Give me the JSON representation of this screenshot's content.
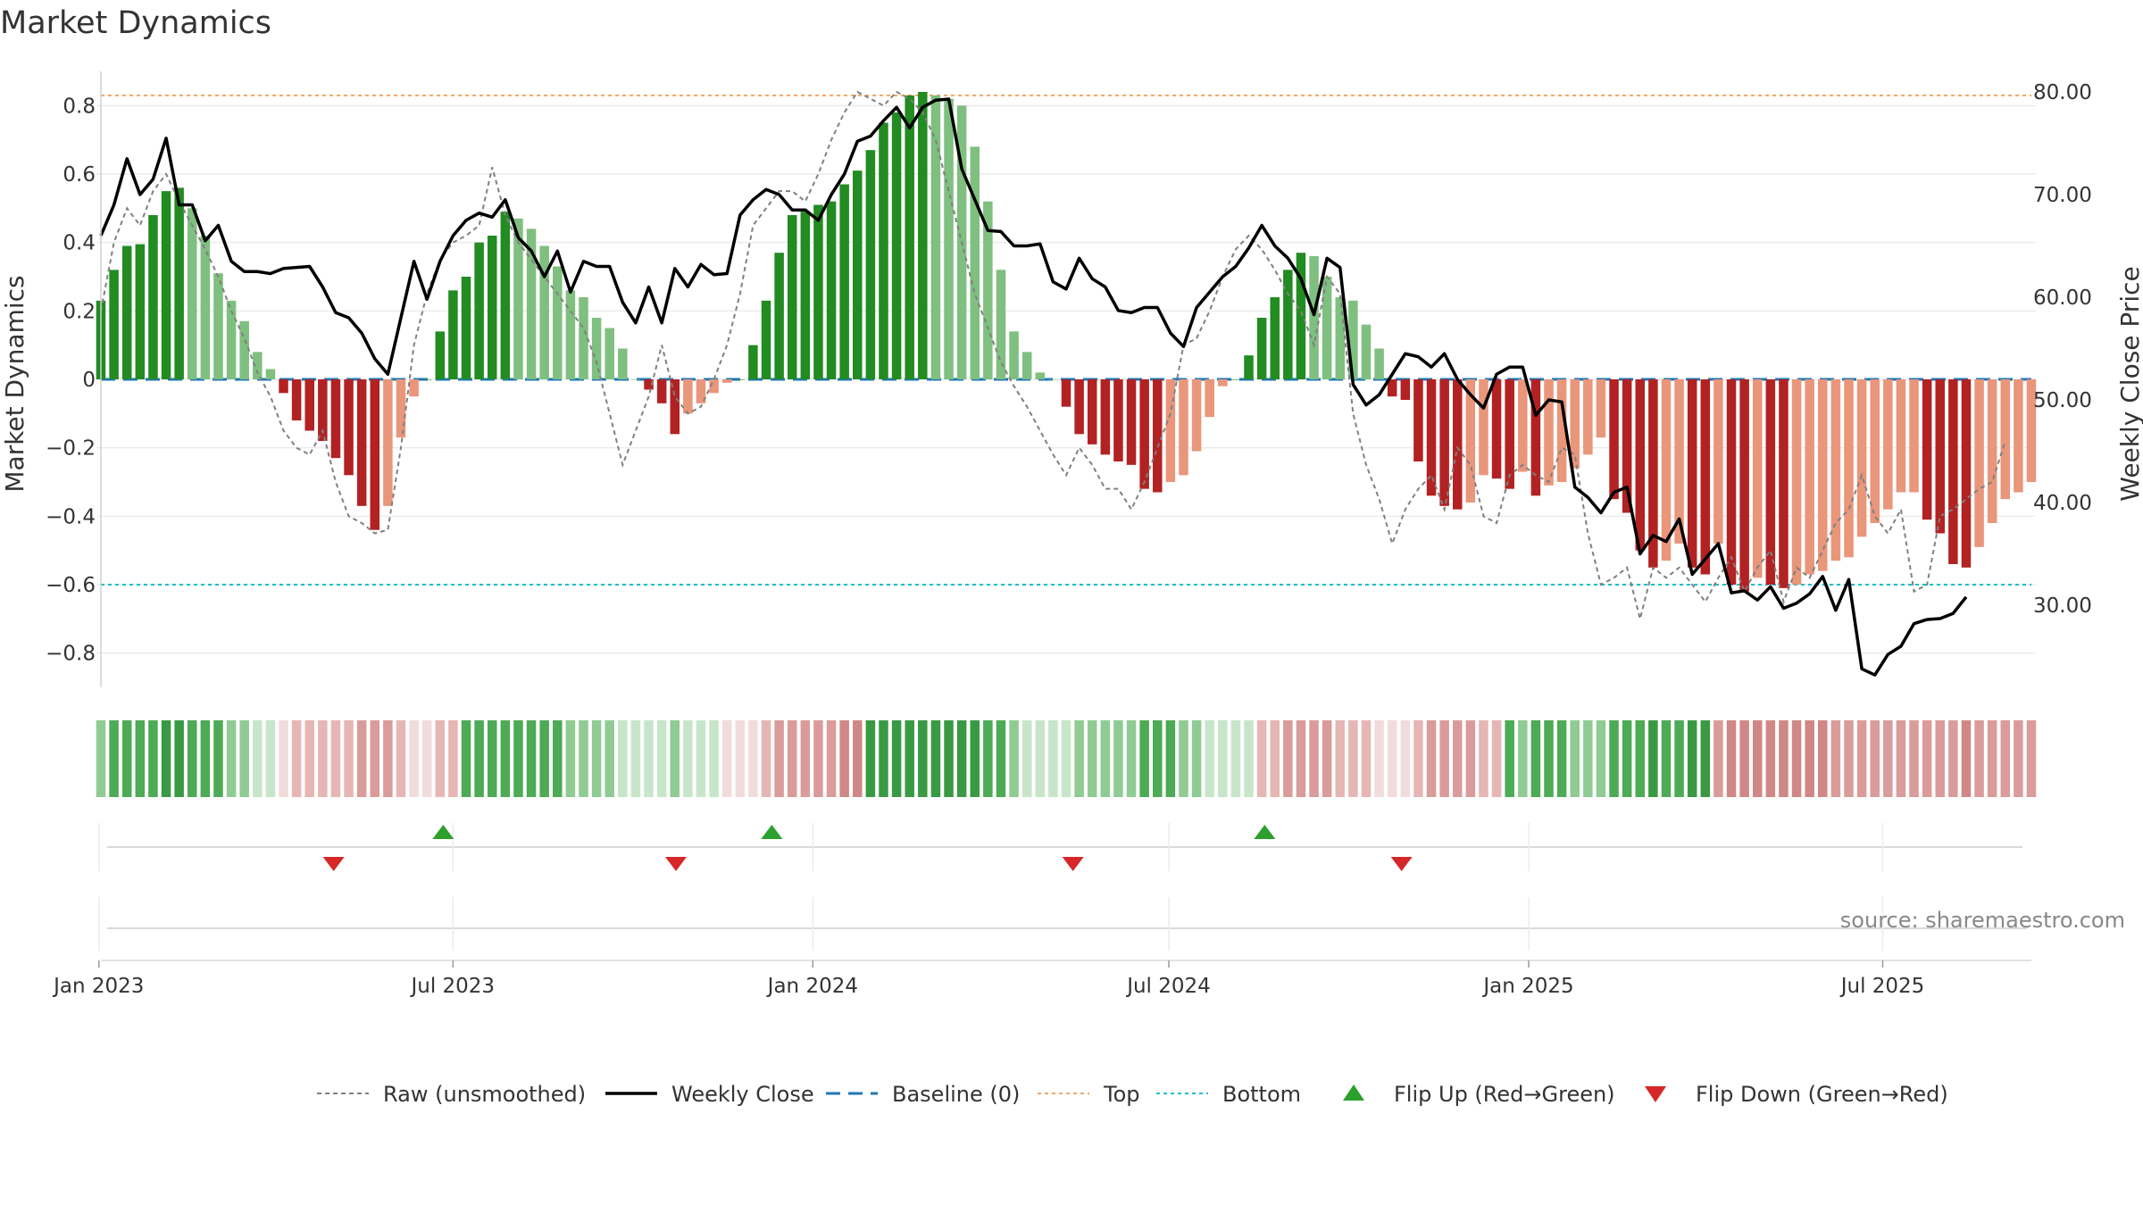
{
  "title": "Market Dynamics",
  "source_text": "source: sharemaestro.com",
  "colors": {
    "strong_green": "#228b22",
    "light_green": "#7fbf7f",
    "strong_red": "#b22222",
    "light_red": "#e9967a",
    "raw": "#808080",
    "close": "#000000",
    "baseline": "#1f77b4",
    "top": "#f4a460",
    "bottom": "#17becf",
    "flip_up": "#2ca02c",
    "flip_down": "#d62728"
  },
  "chart_data": {
    "type": "bar",
    "title": "Market Dynamics",
    "ylabel_left": "Market Dynamics",
    "ylabel_right": "Weekly Close Price",
    "ylim_left": [
      -0.9,
      0.9
    ],
    "ylim_right": [
      22,
      82
    ],
    "yticks_left": [
      0.8,
      0.6,
      0.4,
      0.2,
      0,
      -0.2,
      -0.4,
      -0.6,
      -0.8
    ],
    "yticks_left_labels": [
      "0.8",
      "0.6",
      "0.4",
      "0.2",
      "0",
      "−0.2",
      "−0.4",
      "−0.6",
      "−0.8"
    ],
    "yticks_right": [
      80,
      70,
      60,
      50,
      40,
      30
    ],
    "yticks_right_labels": [
      "80.00",
      "70.00",
      "60.00",
      "50.00",
      "40.00",
      "30.00"
    ],
    "x_start": "2023-01-02",
    "x_end": "2025-09-15",
    "xticks": [
      "2023-01-01",
      "2023-07-01",
      "2024-01-01",
      "2024-07-01",
      "2025-01-01",
      "2025-07-01"
    ],
    "xtick_labels": [
      "Jan 2023",
      "Jul 2023",
      "Jan 2024",
      "Jul 2024",
      "Jan 2025",
      "Jul 2025"
    ],
    "top_level": 0.83,
    "bottom_level": -0.6,
    "baseline_level": 0,
    "grid": true,
    "legend_position": "bottom-center",
    "series": [
      {
        "name": "Raw (unsmoothed)",
        "type": "line",
        "values": [
          0.2,
          0.4,
          0.5,
          0.45,
          0.55,
          0.6,
          0.52,
          0.45,
          0.38,
          0.3,
          0.2,
          0.12,
          0.02,
          -0.05,
          -0.15,
          -0.2,
          -0.22,
          -0.15,
          -0.3,
          -0.4,
          -0.42,
          -0.45,
          -0.44,
          -0.2,
          0.1,
          0.25,
          0.35,
          0.4,
          0.42,
          0.45,
          0.62,
          0.48,
          0.4,
          0.35,
          0.3,
          0.25,
          0.2,
          0.15,
          0.05,
          -0.1,
          -0.25,
          -0.15,
          -0.05,
          0.1,
          -0.05,
          -0.1,
          -0.08,
          0.0,
          0.1,
          0.25,
          0.45,
          0.5,
          0.55,
          0.55,
          0.52,
          0.6,
          0.7,
          0.78,
          0.84,
          0.82,
          0.8,
          0.84,
          0.82,
          0.78,
          0.7,
          0.55,
          0.4,
          0.25,
          0.15,
          0.05,
          -0.02,
          -0.08,
          -0.15,
          -0.22,
          -0.28,
          -0.2,
          -0.25,
          -0.32,
          -0.32,
          -0.38,
          -0.3,
          -0.2,
          -0.1,
          0.1,
          0.12,
          0.2,
          0.3,
          0.38,
          0.42,
          0.38,
          0.32,
          0.25,
          0.2,
          0.1,
          0.3,
          0.25,
          -0.1,
          -0.25,
          -0.35,
          -0.48,
          -0.38,
          -0.32,
          -0.28,
          -0.38,
          -0.2,
          -0.25,
          -0.4,
          -0.42,
          -0.28,
          -0.25,
          -0.28,
          -0.3,
          -0.2,
          -0.22,
          -0.45,
          -0.6,
          -0.58,
          -0.55,
          -0.7,
          -0.55,
          -0.58,
          -0.55,
          -0.6,
          -0.65,
          -0.58,
          -0.52,
          -0.62,
          -0.55,
          -0.5,
          -0.65,
          -0.55,
          -0.58,
          -0.5,
          -0.42,
          -0.38,
          -0.28,
          -0.4,
          -0.45,
          -0.38,
          -0.62,
          -0.6,
          -0.4,
          -0.38,
          -0.35,
          -0.32,
          -0.3,
          -0.18
        ]
      },
      {
        "name": "Weekly Close",
        "type": "line",
        "axis": "right",
        "values": [
          66,
          69,
          73.5,
          70,
          71.5,
          75.5,
          69,
          69,
          65.5,
          67,
          63.5,
          62.5,
          62.5,
          62.3,
          62.8,
          62.9,
          63,
          61,
          58.5,
          58,
          56.5,
          54,
          52.5,
          58,
          63.5,
          59.8,
          63.5,
          66,
          67.5,
          68.2,
          67.8,
          69.5,
          65.8,
          64.5,
          62,
          64.5,
          60.5,
          63.5,
          63,
          63,
          59.5,
          57.5,
          61,
          57.5,
          62.8,
          61,
          63.2,
          62.2,
          62.3,
          68,
          69.5,
          70.5,
          70,
          68.5,
          68.5,
          67.5,
          70,
          72,
          75.2,
          75.7,
          77.2,
          78.5,
          76.5,
          78.5,
          79.2,
          79.3,
          72.5,
          69.5,
          66.5,
          66.4,
          65,
          65,
          65.2,
          61.5,
          60.8,
          63.8,
          61.8,
          61,
          58.7,
          58.5,
          59,
          59,
          56.5,
          55.2,
          59,
          60.5,
          62,
          63,
          64.8,
          67,
          65,
          63.8,
          61.8,
          58.3,
          63.8,
          62.9,
          51.5,
          49.5,
          50.5,
          52.5,
          54.5,
          54.2,
          53.2,
          54.5,
          52,
          50.5,
          49.2,
          52.5,
          53.2,
          53.2,
          48.5,
          50,
          49.8,
          41.5,
          40.5,
          39,
          41,
          41.5,
          35,
          36.8,
          36.2,
          38.4,
          33,
          34.5,
          36,
          31.2,
          31.4,
          30.5,
          31.8,
          29.7,
          30.2,
          31.1,
          32.8,
          29.5,
          32.5,
          23.8,
          23.2,
          25.2,
          26,
          28.2,
          28.6,
          28.7,
          29.2,
          30.8
        ]
      },
      {
        "name": "Market Dynamics",
        "type": "bar",
        "values": [
          0.23,
          0.32,
          0.39,
          0.395,
          0.48,
          0.55,
          0.56,
          0.5,
          0.42,
          0.31,
          0.23,
          0.17,
          0.08,
          0.03,
          -0.04,
          -0.12,
          -0.15,
          -0.18,
          -0.23,
          -0.28,
          -0.37,
          -0.44,
          -0.37,
          -0.17,
          -0.05,
          0.0,
          0.14,
          0.26,
          0.3,
          0.4,
          0.42,
          0.49,
          0.47,
          0.44,
          0.39,
          0.33,
          0.26,
          0.24,
          0.18,
          0.15,
          0.09,
          0.0,
          -0.03,
          -0.07,
          -0.16,
          -0.1,
          -0.07,
          -0.04,
          -0.01,
          0.0,
          0.1,
          0.23,
          0.37,
          0.48,
          0.49,
          0.51,
          0.52,
          0.57,
          0.61,
          0.67,
          0.75,
          0.78,
          0.83,
          0.84,
          0.83,
          0.82,
          0.8,
          0.68,
          0.52,
          0.32,
          0.14,
          0.08,
          0.02,
          0.0,
          -0.08,
          -0.16,
          -0.19,
          -0.22,
          -0.24,
          -0.25,
          -0.32,
          -0.33,
          -0.3,
          -0.28,
          -0.21,
          -0.11,
          -0.02,
          0.0,
          0.07,
          0.18,
          0.24,
          0.32,
          0.37,
          0.36,
          0.3,
          0.24,
          0.23,
          0.16,
          0.09,
          -0.05,
          -0.06,
          -0.24,
          -0.34,
          -0.37,
          -0.38,
          -0.36,
          -0.28,
          -0.29,
          -0.32,
          -0.27,
          -0.34,
          -0.31,
          -0.3,
          -0.26,
          -0.22,
          -0.17,
          -0.35,
          -0.39,
          -0.5,
          -0.55,
          -0.53,
          -0.48,
          -0.55,
          -0.57,
          -0.48,
          -0.6,
          -0.62,
          -0.58,
          -0.6,
          -0.61,
          -0.6,
          -0.57,
          -0.56,
          -0.53,
          -0.52,
          -0.46,
          -0.42,
          -0.38,
          -0.33,
          -0.33,
          -0.41,
          -0.45,
          -0.54,
          -0.55,
          -0.49,
          -0.42,
          -0.35,
          -0.33,
          -0.3
        ]
      }
    ],
    "regime_segments": [
      {
        "regime": "green",
        "weeks": 14
      },
      {
        "regime": "red",
        "weeks": 14
      },
      {
        "regime": "green",
        "weeks": 20
      },
      {
        "regime": "red",
        "weeks": 11
      },
      {
        "regime": "green",
        "weeks": 30
      },
      {
        "regime": "red",
        "weeks": 19
      },
      {
        "regime": "green",
        "weeks": 16
      },
      {
        "regime": "red",
        "weeks": 62
      }
    ],
    "flips": [
      {
        "date": "2023-05-01",
        "direction": "down"
      },
      {
        "date": "2023-06-26",
        "direction": "up"
      },
      {
        "date": "2023-10-23",
        "direction": "down"
      },
      {
        "date": "2023-12-11",
        "direction": "up"
      },
      {
        "date": "2024-05-13",
        "direction": "down"
      },
      {
        "date": "2024-08-19",
        "direction": "up"
      },
      {
        "date": "2024-10-28",
        "direction": "down"
      }
    ]
  },
  "legend": [
    {
      "label": "Raw (unsmoothed)",
      "style": "dashed-gray"
    },
    {
      "label": "Weekly Close",
      "style": "solid-black"
    },
    {
      "label": "Baseline (0)",
      "style": "dashed-blue"
    },
    {
      "label": "Top",
      "style": "dotted-orange"
    },
    {
      "label": "Bottom",
      "style": "dotted-cyan"
    },
    {
      "label": "Flip Up (Red→Green)",
      "style": "triangle-up-green"
    },
    {
      "label": "Flip Down (Green→Red)",
      "style": "triangle-down-red"
    }
  ]
}
